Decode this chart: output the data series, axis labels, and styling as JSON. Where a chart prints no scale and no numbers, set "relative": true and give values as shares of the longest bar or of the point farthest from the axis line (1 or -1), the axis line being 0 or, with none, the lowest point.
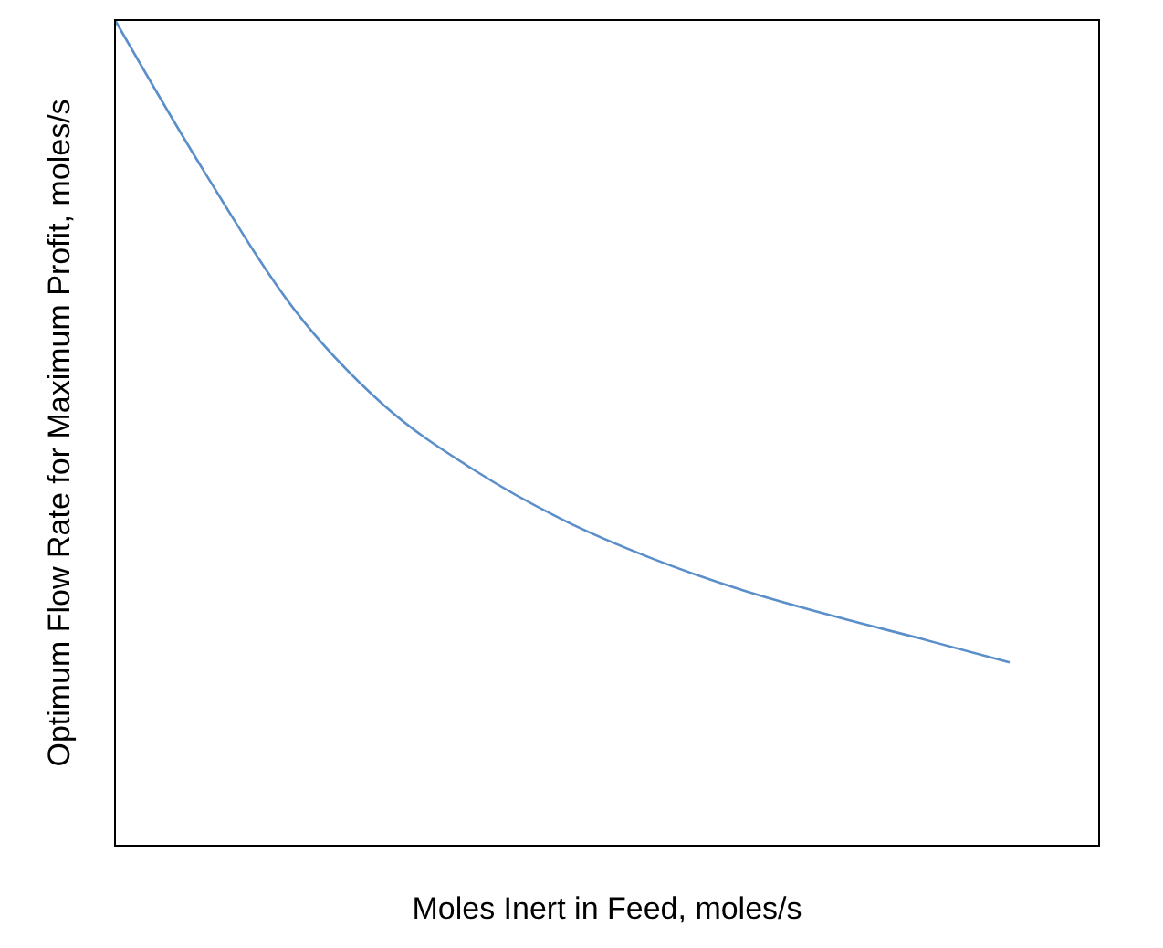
{
  "chart_data": {
    "type": "line",
    "relative": true,
    "xlabel": "Moles Inert in Feed, moles/s",
    "ylabel": "Optimum Flow Rate for Maximum Profit, moles/s",
    "categories": [
      null,
      null,
      null,
      null,
      null,
      null,
      null,
      null,
      null,
      null,
      null,
      null
    ],
    "series": [
      {
        "color": "#5b8fc9",
        "values": [
          1,
          0.816,
          0.65,
          0.534,
          0.456,
          0.395,
          0.348,
          0.31,
          0.279,
          0.251,
          0.222,
          null
        ]
      }
    ],
    "grid": false,
    "marker": "none",
    "line_style": "solid"
  }
}
